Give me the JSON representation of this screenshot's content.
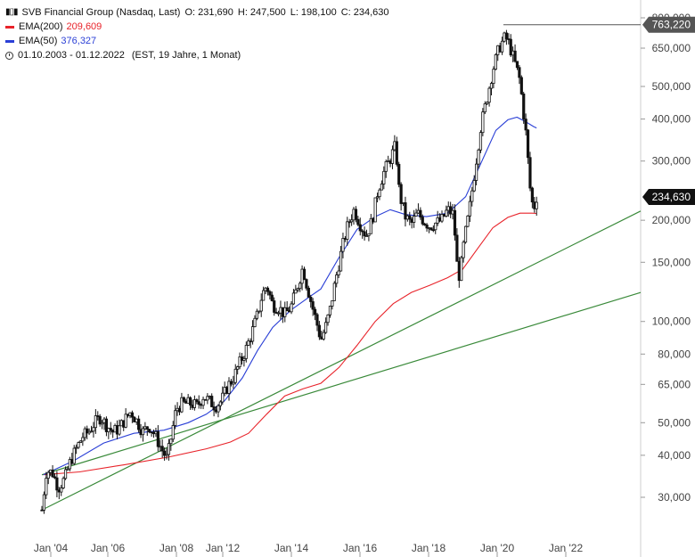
{
  "legend": {
    "title": "SVB Financial Group (Nasdaq, Last)",
    "open": "O: 231,690",
    "high": "H: 247,500",
    "low": "L: 198,100",
    "close": "C: 234,630",
    "ema200_label": "EMA(200)",
    "ema200_value": "209,609",
    "ema50_label": "EMA(50)",
    "ema50_value": "376,327",
    "date_range": "01.10.2003 - 01.12.2022",
    "timeframe": "(EST, 19 Jahre, 1 Monat)"
  },
  "colors": {
    "candles": "#111111",
    "ema200": "#e8232a",
    "ema50": "#2a3fd6",
    "trendline": "#3a8a3a",
    "badge_bg": "#555555",
    "price_badge_bg": "#111111"
  },
  "chart_data": {
    "type": "line",
    "scale": "log",
    "ylim": [
      23000,
      800000
    ],
    "y_ticks": [
      30000,
      40000,
      50000,
      65000,
      80000,
      100000,
      150000,
      200000,
      300000,
      400000,
      500000,
      650000,
      800000
    ],
    "y_tick_labels": [
      "30,000",
      "40,000",
      "50,000",
      "65,000",
      "80,000",
      "100,000",
      "150,000",
      "200,000",
      "300,000",
      "400,000",
      "500,000",
      "650,000",
      "800,000"
    ],
    "x_range": [
      2003.75,
      2023.6
    ],
    "x_ticks": [
      2004,
      2006,
      2008,
      2009.4,
      2011.4,
      2013.4,
      2015.4,
      2017.4,
      2019.4
    ],
    "x_tick_labels": [
      "Jan '04",
      "Jan '06",
      "Jan '08",
      "Jan '12",
      "Jan '14",
      "Jan '16",
      "Jan '18",
      "Jan '20",
      "Jan '22"
    ],
    "series": [
      {
        "name": "SVB Financial Group",
        "role": "price",
        "points": [
          [
            2003.75,
            27500
          ],
          [
            2003.9,
            36000
          ],
          [
            2004.1,
            35500
          ],
          [
            2004.3,
            32000
          ],
          [
            2004.5,
            34000
          ],
          [
            2004.7,
            38500
          ],
          [
            2004.9,
            42000
          ],
          [
            2005.1,
            45500
          ],
          [
            2005.3,
            47000
          ],
          [
            2005.5,
            50000
          ],
          [
            2005.7,
            52000
          ],
          [
            2005.9,
            49000
          ],
          [
            2006.1,
            47000
          ],
          [
            2006.3,
            48000
          ],
          [
            2006.5,
            51000
          ],
          [
            2006.7,
            54000
          ],
          [
            2006.9,
            50500
          ],
          [
            2007.1,
            47000
          ],
          [
            2007.3,
            49000
          ],
          [
            2007.5,
            46000
          ],
          [
            2007.7,
            42000
          ],
          [
            2007.9,
            39000
          ],
          [
            2008.05,
            46000
          ],
          [
            2008.2,
            55000
          ],
          [
            2008.4,
            57000
          ],
          [
            2008.7,
            57000
          ],
          [
            2008.9,
            56000
          ],
          [
            2009.1,
            60000
          ],
          [
            2009.3,
            58000
          ],
          [
            2009.5,
            56000
          ],
          [
            2009.7,
            58000
          ],
          [
            2009.9,
            64000
          ],
          [
            2010.1,
            68000
          ],
          [
            2010.3,
            75000
          ],
          [
            2010.5,
            82000
          ],
          [
            2010.7,
            92000
          ],
          [
            2010.9,
            105000
          ],
          [
            2011.05,
            120000
          ],
          [
            2011.2,
            128000
          ],
          [
            2011.4,
            112000
          ],
          [
            2011.6,
            110000
          ],
          [
            2011.8,
            105000
          ],
          [
            2012.0,
            110000
          ],
          [
            2012.2,
            125000
          ],
          [
            2012.4,
            145000
          ],
          [
            2012.5,
            132000
          ],
          [
            2012.7,
            112000
          ],
          [
            2012.9,
            96000
          ],
          [
            2013.0,
            88000
          ],
          [
            2013.15,
            96000
          ],
          [
            2013.3,
            108000
          ],
          [
            2013.5,
            135000
          ],
          [
            2013.7,
            165000
          ],
          [
            2013.9,
            195000
          ],
          [
            2014.1,
            215000
          ],
          [
            2014.3,
            195000
          ],
          [
            2014.5,
            180000
          ],
          [
            2014.7,
            200000
          ],
          [
            2014.9,
            248000
          ],
          [
            2015.1,
            280000
          ],
          [
            2015.3,
            305000
          ],
          [
            2015.45,
            330000
          ],
          [
            2015.5,
            315000
          ],
          [
            2015.6,
            240000
          ],
          [
            2015.8,
            205000
          ],
          [
            2016.0,
            195000
          ],
          [
            2016.2,
            210000
          ],
          [
            2016.4,
            200000
          ],
          [
            2016.6,
            192000
          ],
          [
            2016.8,
            196000
          ],
          [
            2017.0,
            200000
          ],
          [
            2017.2,
            215000
          ],
          [
            2017.4,
            208000
          ],
          [
            2017.5,
            150000
          ],
          [
            2017.6,
            135000
          ],
          [
            2017.75,
            175000
          ],
          [
            2017.9,
            208000
          ],
          [
            2018.1,
            280000
          ],
          [
            2018.3,
            380000
          ],
          [
            2018.5,
            460000
          ],
          [
            2018.7,
            560000
          ],
          [
            2018.9,
            650000
          ],
          [
            2019.1,
            700000
          ],
          [
            2019.2,
            685000
          ],
          [
            2019.35,
            620000
          ],
          [
            2019.5,
            560000
          ],
          [
            2019.6,
            520000
          ],
          [
            2019.7,
            430000
          ],
          [
            2019.8,
            360000
          ],
          [
            2019.88,
            290000
          ],
          [
            2019.95,
            240000
          ],
          [
            2020.05,
            215000
          ],
          [
            2020.15,
            234630
          ]
        ]
      },
      {
        "name": "EMA(200)",
        "role": "ema200",
        "points": [
          [
            2003.8,
            35000
          ],
          [
            2005.0,
            35700
          ],
          [
            2006.5,
            37500
          ],
          [
            2008.0,
            39600
          ],
          [
            2009.2,
            41800
          ],
          [
            2010.0,
            43800
          ],
          [
            2010.6,
            46500
          ],
          [
            2011.2,
            53000
          ],
          [
            2011.8,
            60000
          ],
          [
            2012.4,
            63000
          ],
          [
            2013.0,
            65500
          ],
          [
            2013.6,
            73000
          ],
          [
            2014.2,
            85000
          ],
          [
            2014.8,
            100000
          ],
          [
            2015.4,
            113000
          ],
          [
            2016.0,
            122000
          ],
          [
            2016.6,
            128000
          ],
          [
            2017.2,
            135000
          ],
          [
            2017.7,
            143000
          ],
          [
            2018.2,
            165000
          ],
          [
            2018.7,
            190000
          ],
          [
            2019.2,
            204000
          ],
          [
            2019.6,
            210000
          ],
          [
            2020.0,
            210000
          ],
          [
            2020.15,
            209609
          ]
        ]
      },
      {
        "name": "EMA(50)",
        "role": "ema50",
        "points": [
          [
            2003.8,
            35000
          ],
          [
            2004.8,
            38500
          ],
          [
            2005.8,
            43500
          ],
          [
            2006.8,
            46500
          ],
          [
            2007.8,
            47500
          ],
          [
            2008.6,
            50000
          ],
          [
            2009.2,
            53000
          ],
          [
            2009.8,
            58000
          ],
          [
            2010.4,
            68000
          ],
          [
            2010.9,
            82000
          ],
          [
            2011.4,
            96000
          ],
          [
            2012.0,
            108000
          ],
          [
            2012.6,
            118000
          ],
          [
            2013.0,
            125000
          ],
          [
            2013.6,
            155000
          ],
          [
            2014.2,
            188000
          ],
          [
            2014.8,
            205000
          ],
          [
            2015.3,
            215000
          ],
          [
            2015.8,
            208000
          ],
          [
            2016.5,
            205000
          ],
          [
            2017.2,
            210000
          ],
          [
            2017.8,
            235000
          ],
          [
            2018.3,
            295000
          ],
          [
            2018.8,
            370000
          ],
          [
            2019.2,
            398000
          ],
          [
            2019.5,
            405000
          ],
          [
            2019.8,
            392000
          ],
          [
            2020.05,
            380000
          ],
          [
            2020.15,
            376327
          ]
        ]
      }
    ],
    "trendlines": [
      {
        "points": [
          [
            2003.75,
            27500
          ],
          [
            2023.6,
            213000
          ]
        ]
      },
      {
        "points": [
          [
            2003.75,
            35000
          ],
          [
            2023.6,
            122000
          ]
        ]
      }
    ],
    "badges": [
      {
        "value": 763220,
        "label": "763,220",
        "line_from_x": 2019.05
      },
      {
        "value": 234630,
        "label": "234,630"
      }
    ]
  }
}
